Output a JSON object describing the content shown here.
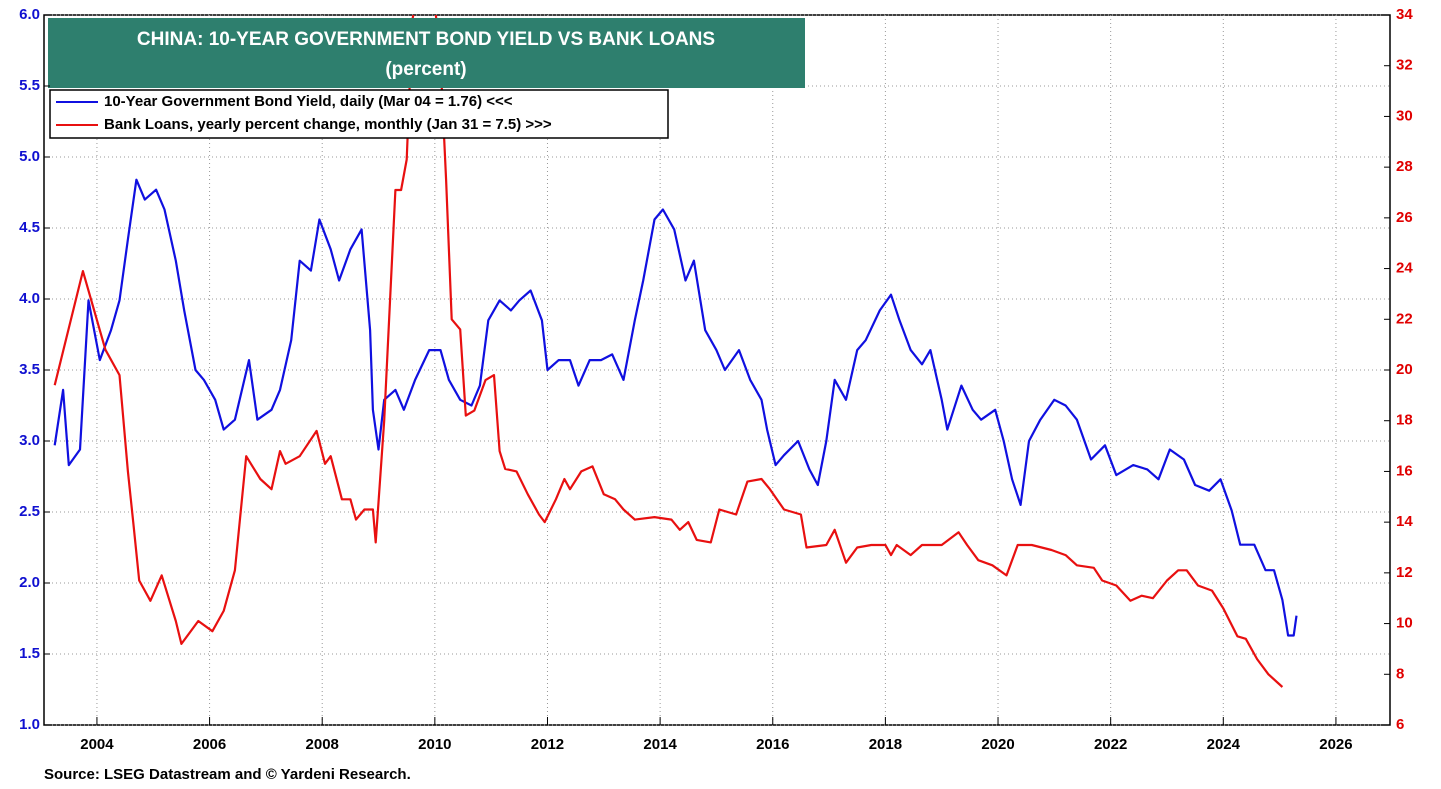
{
  "chart_data": {
    "type": "line",
    "title": "CHINA: 10-YEAR GOVERNMENT BOND YIELD VS BANK LOANS",
    "subtitle": "(percent)",
    "source": "Source: LSEG Datastream and © Yardeni Research.",
    "xlim": [
      2003.06,
      2026.96
    ],
    "xticks": [
      2004,
      2006,
      2008,
      2010,
      2012,
      2014,
      2016,
      2018,
      2020,
      2022,
      2024,
      2026
    ],
    "ylim": [
      1.0,
      6.0
    ],
    "yticks": [
      {
        "value": 1.0,
        "label": "1.0"
      },
      {
        "value": 1.5,
        "label": "1.5"
      },
      {
        "value": 2.0,
        "label": "2.0"
      },
      {
        "value": 2.5,
        "label": "2.5"
      },
      {
        "value": 3.0,
        "label": "3.0"
      },
      {
        "value": 3.5,
        "label": "3.5"
      },
      {
        "value": 4.0,
        "label": "4.0"
      },
      {
        "value": 4.5,
        "label": "4.5"
      },
      {
        "value": 5.0,
        "label": "5.0"
      },
      {
        "value": 5.5,
        "label": "5.5"
      },
      {
        "value": 6.0,
        "label": "6.0"
      }
    ],
    "y2lim": [
      6,
      34
    ],
    "y2ticks": [
      6,
      8,
      10,
      12,
      14,
      16,
      18,
      20,
      22,
      24,
      26,
      28,
      30,
      32,
      34
    ],
    "grid": true,
    "legend": "top-left",
    "series": [
      {
        "name": "10-Year Government Bond Yield, daily (Mar 04 = 1.76) <<<",
        "color": "#1010e0",
        "axis": "y",
        "x": [
          2003.25,
          2003.4,
          2003.5,
          2003.7,
          2003.85,
          2004.05,
          2004.25,
          2004.4,
          2004.55,
          2004.7,
          2004.85,
          2005.05,
          2005.2,
          2005.4,
          2005.55,
          2005.75,
          2005.9,
          2006.1,
          2006.25,
          2006.45,
          2006.7,
          2006.85,
          2007.1,
          2007.25,
          2007.45,
          2007.6,
          2007.8,
          2007.95,
          2008.15,
          2008.3,
          2008.5,
          2008.7,
          2008.85,
          2008.9,
          2009.0,
          2009.1,
          2009.3,
          2009.45,
          2009.65,
          2009.9,
          2010.1,
          2010.25,
          2010.45,
          2010.65,
          2010.8,
          2010.95,
          2011.15,
          2011.35,
          2011.5,
          2011.7,
          2011.9,
          2012.0,
          2012.2,
          2012.4,
          2012.55,
          2012.75,
          2012.95,
          2013.15,
          2013.35,
          2013.55,
          2013.7,
          2013.9,
          2014.05,
          2014.25,
          2014.45,
          2014.6,
          2014.8,
          2015.0,
          2015.15,
          2015.4,
          2015.6,
          2015.8,
          2015.9,
          2016.05,
          2016.2,
          2016.45,
          2016.65,
          2016.8,
          2016.95,
          2017.1,
          2017.3,
          2017.5,
          2017.65,
          2017.9,
          2018.1,
          2018.25,
          2018.45,
          2018.65,
          2018.8,
          2019.0,
          2019.1,
          2019.35,
          2019.55,
          2019.7,
          2019.95,
          2020.1,
          2020.25,
          2020.4,
          2020.55,
          2020.75,
          2021.0,
          2021.2,
          2021.4,
          2021.65,
          2021.9,
          2022.1,
          2022.4,
          2022.65,
          2022.85,
          2023.05,
          2023.3,
          2023.5,
          2023.75,
          2023.95,
          2024.15,
          2024.3,
          2024.55,
          2024.75,
          2024.9,
          2025.05,
          2025.15,
          2025.25,
          2025.3
        ],
        "values": [
          2.97,
          3.36,
          2.83,
          2.94,
          3.99,
          3.57,
          3.78,
          3.99,
          4.42,
          4.84,
          4.7,
          4.77,
          4.63,
          4.27,
          3.92,
          3.5,
          3.43,
          3.29,
          3.08,
          3.15,
          3.57,
          3.15,
          3.22,
          3.36,
          3.71,
          4.27,
          4.2,
          4.56,
          4.35,
          4.13,
          4.35,
          4.49,
          3.78,
          3.22,
          2.94,
          3.29,
          3.36,
          3.22,
          3.43,
          3.64,
          3.64,
          3.43,
          3.29,
          3.25,
          3.39,
          3.85,
          3.99,
          3.92,
          3.99,
          4.06,
          3.85,
          3.5,
          3.57,
          3.57,
          3.39,
          3.57,
          3.57,
          3.61,
          3.43,
          3.85,
          4.13,
          4.56,
          4.63,
          4.49,
          4.13,
          4.27,
          3.78,
          3.64,
          3.5,
          3.64,
          3.43,
          3.29,
          3.08,
          2.83,
          2.9,
          3.0,
          2.8,
          2.69,
          3.0,
          3.43,
          3.29,
          3.64,
          3.71,
          3.92,
          4.03,
          3.85,
          3.64,
          3.54,
          3.64,
          3.29,
          3.08,
          3.39,
          3.22,
          3.15,
          3.22,
          3.0,
          2.73,
          2.55,
          3.0,
          3.15,
          3.29,
          3.25,
          3.15,
          2.87,
          2.97,
          2.76,
          2.83,
          2.8,
          2.73,
          2.94,
          2.87,
          2.69,
          2.65,
          2.73,
          2.51,
          2.27,
          2.27,
          2.09,
          2.09,
          1.88,
          1.63,
          1.63,
          1.77
        ]
      },
      {
        "name": "Bank Loans, yearly percent change, monthly (Jan 31 = 7.5) >>>",
        "color": "#e81010",
        "axis": "y2",
        "x": [
          2003.25,
          2003.75,
          2004.15,
          2004.4,
          2004.55,
          2004.65,
          2004.75,
          2004.95,
          2005.15,
          2005.4,
          2005.5,
          2005.8,
          2006.05,
          2006.25,
          2006.45,
          2006.65,
          2006.9,
          2007.1,
          2007.25,
          2007.35,
          2007.6,
          2007.9,
          2008.05,
          2008.15,
          2008.35,
          2008.5,
          2008.6,
          2008.75,
          2008.9,
          2008.95,
          2009.1,
          2009.3,
          2009.4,
          2009.5,
          2009.6,
          2009.75,
          2009.95,
          2010.1,
          2010.2,
          2010.3,
          2010.45,
          2010.55,
          2010.7,
          2010.9,
          2011.05,
          2011.15,
          2011.25,
          2011.45,
          2011.65,
          2011.85,
          2011.95,
          2012.15,
          2012.3,
          2012.4,
          2012.6,
          2012.8,
          2013.0,
          2013.2,
          2013.35,
          2013.55,
          2013.9,
          2014.2,
          2014.35,
          2014.5,
          2014.65,
          2014.9,
          2015.05,
          2015.35,
          2015.55,
          2015.8,
          2015.95,
          2016.2,
          2016.5,
          2016.6,
          2016.95,
          2017.1,
          2017.3,
          2017.5,
          2017.75,
          2018.0,
          2018.1,
          2018.2,
          2018.45,
          2018.65,
          2019.0,
          2019.3,
          2019.45,
          2019.65,
          2019.9,
          2020.15,
          2020.35,
          2020.6,
          2020.95,
          2021.2,
          2021.4,
          2021.7,
          2021.85,
          2022.1,
          2022.35,
          2022.55,
          2022.75,
          2023.0,
          2023.2,
          2023.35,
          2023.55,
          2023.8,
          2024.0,
          2024.25,
          2024.4,
          2024.6,
          2024.8,
          2025.05
        ],
        "values": [
          19.4,
          23.9,
          20.8,
          19.8,
          16.0,
          13.9,
          11.7,
          10.9,
          11.9,
          10.1,
          9.2,
          10.1,
          9.7,
          10.5,
          12.1,
          16.6,
          15.7,
          15.3,
          16.8,
          16.3,
          16.6,
          17.6,
          16.3,
          16.6,
          14.9,
          14.9,
          14.1,
          14.5,
          14.5,
          13.2,
          18.0,
          27.1,
          27.1,
          28.3,
          33.8,
          35.5,
          35.5,
          32.2,
          27.5,
          22.0,
          21.6,
          18.2,
          18.4,
          19.6,
          19.8,
          16.8,
          16.1,
          16.0,
          15.1,
          14.3,
          14.0,
          14.9,
          15.7,
          15.3,
          16.0,
          16.2,
          15.1,
          14.9,
          14.5,
          14.1,
          14.2,
          14.1,
          13.7,
          14.0,
          13.3,
          13.2,
          14.5,
          14.3,
          15.6,
          15.7,
          15.3,
          14.5,
          14.3,
          13.0,
          13.1,
          13.7,
          12.4,
          13.0,
          13.1,
          13.1,
          12.7,
          13.1,
          12.7,
          13.1,
          13.1,
          13.6,
          13.1,
          12.5,
          12.3,
          11.9,
          13.1,
          13.1,
          12.9,
          12.7,
          12.3,
          12.2,
          11.7,
          11.5,
          10.9,
          11.1,
          11.0,
          11.7,
          12.1,
          12.1,
          11.5,
          11.3,
          10.6,
          9.5,
          9.4,
          8.6,
          8.0,
          7.5
        ]
      }
    ]
  }
}
